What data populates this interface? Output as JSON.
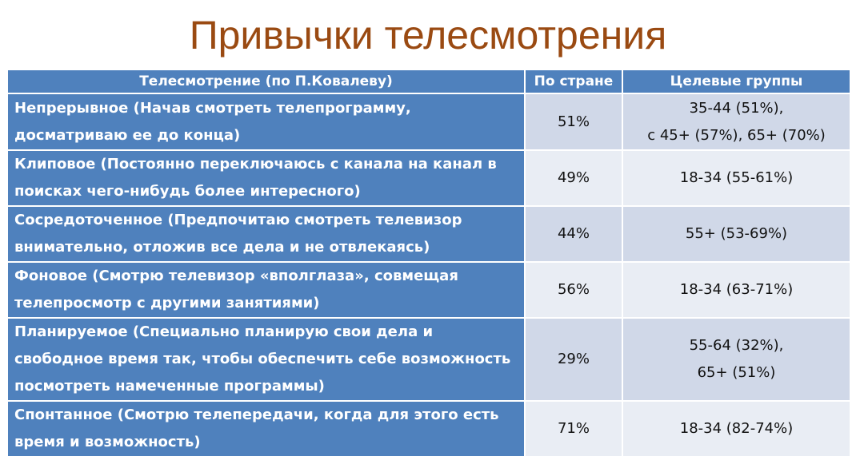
{
  "title": "Привычки телесмотрения",
  "table": {
    "header": [
      "Телесмотрение (по П.Ковалеву)",
      "По стране",
      "Целевые группы"
    ],
    "rows": [
      [
        "Непрерывное (Начав смотреть телепрограмму, досматриваю ее до конца)",
        "51%",
        [
          "35-44 (51%),",
          "с 45+ (57%), 65+ (70%)"
        ]
      ],
      [
        "Клиповое (Постоянно переключаюсь с канала на канал в поисках чего-нибудь более интересного)",
        "49%",
        [
          "18-34 (55-61%)"
        ]
      ],
      [
        "Сосредоточенное (Предпочитаю смотреть телевизор внимательно, отложив все дела и не отвлекаясь)",
        "44%",
        [
          "55+ (53-69%)"
        ]
      ],
      [
        "Фоновое (Смотрю телевизор «вполглаза», совмещая телепросмотр с другими занятиями)",
        "56%",
        [
          "18-34 (63-71%)"
        ]
      ],
      [
        "Планируемое (Специально планирую свои дела и свободное время так, чтобы обеспечить себе возможность посмотреть намеченные программы)",
        "29%",
        [
          "55-64 (32%),",
          "65+ (51%)"
        ]
      ],
      [
        "Спонтанное  (Смотрю телепередачи, когда для этого есть время и возможность)",
        "71%",
        [
          "18-34 (82-74%)"
        ]
      ]
    ]
  }
}
